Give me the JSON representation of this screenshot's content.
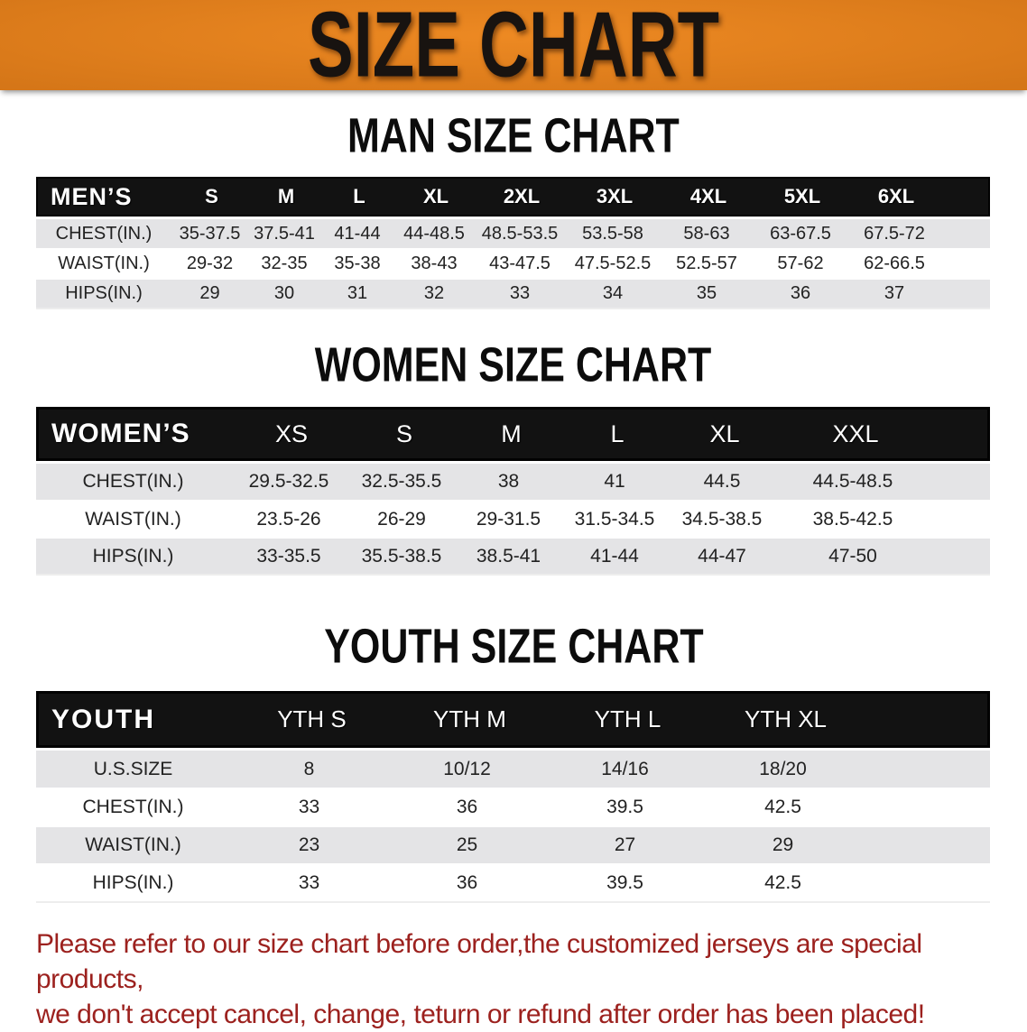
{
  "banner": {
    "title": "SIZE CHART"
  },
  "colors": {
    "banner_bg": "#e7801a",
    "table_header_bg": "#121212",
    "row_alt_bg": "#e4e4e6",
    "disclaimer_text": "#9c211e"
  },
  "sections": [
    {
      "heading": "MAN SIZE CHART",
      "table": {
        "label": "MEN’S",
        "columns": [
          "S",
          "M",
          "L",
          "XL",
          "2XL",
          "3XL",
          "4XL",
          "5XL",
          "6XL"
        ],
        "rows": [
          {
            "label": "CHEST(IN.)",
            "values": [
              "35-37.5",
              "37.5-41",
              "41-44",
              "44-48.5",
              "48.5-53.5",
              "53.5-58",
              "58-63",
              "63-67.5",
              "67.5-72"
            ]
          },
          {
            "label": "WAIST(IN.)",
            "values": [
              "29-32",
              "32-35",
              "35-38",
              "38-43",
              "43-47.5",
              "47.5-52.5",
              "52.5-57",
              "57-62",
              "62-66.5"
            ]
          },
          {
            "label": "HIPS(IN.)",
            "values": [
              "29",
              "30",
              "31",
              "32",
              "33",
              "34",
              "35",
              "36",
              "37"
            ]
          }
        ]
      }
    },
    {
      "heading": "WOMEN SIZE CHART",
      "table": {
        "label": "WOMEN’S",
        "columns": [
          "XS",
          "S",
          "M",
          "L",
          "XL",
          "XXL"
        ],
        "rows": [
          {
            "label": "CHEST(IN.)",
            "values": [
              "29.5-32.5",
              "32.5-35.5",
              "38",
              "41",
              "44.5",
              "44.5-48.5"
            ]
          },
          {
            "label": "WAIST(IN.)",
            "values": [
              "23.5-26",
              "26-29",
              "29-31.5",
              "31.5-34.5",
              "34.5-38.5",
              "38.5-42.5"
            ]
          },
          {
            "label": "HIPS(IN.)",
            "values": [
              "33-35.5",
              "35.5-38.5",
              "38.5-41",
              "41-44",
              "44-47",
              "47-50"
            ]
          }
        ]
      }
    },
    {
      "heading": "YOUTH SIZE CHART",
      "table": {
        "label": "YOUTH",
        "columns": [
          "YTH S",
          "YTH M",
          "YTH L",
          "YTH XL"
        ],
        "rows": [
          {
            "label": "U.S.SIZE",
            "values": [
              "8",
              "10/12",
              "14/16",
              "18/20"
            ]
          },
          {
            "label": "CHEST(IN.)",
            "values": [
              "33",
              "36",
              "39.5",
              "42.5"
            ]
          },
          {
            "label": "WAIST(IN.)",
            "values": [
              "23",
              "25",
              "27",
              "29"
            ]
          },
          {
            "label": "HIPS(IN.)",
            "values": [
              "33",
              "36",
              "39.5",
              "42.5"
            ]
          }
        ]
      }
    }
  ],
  "disclaimer": {
    "line1": "Please refer to our size chart before order,the customized jerseys are special products,",
    "line2": "we don't accept cancel, change, teturn or refund after order has been placed!"
  }
}
